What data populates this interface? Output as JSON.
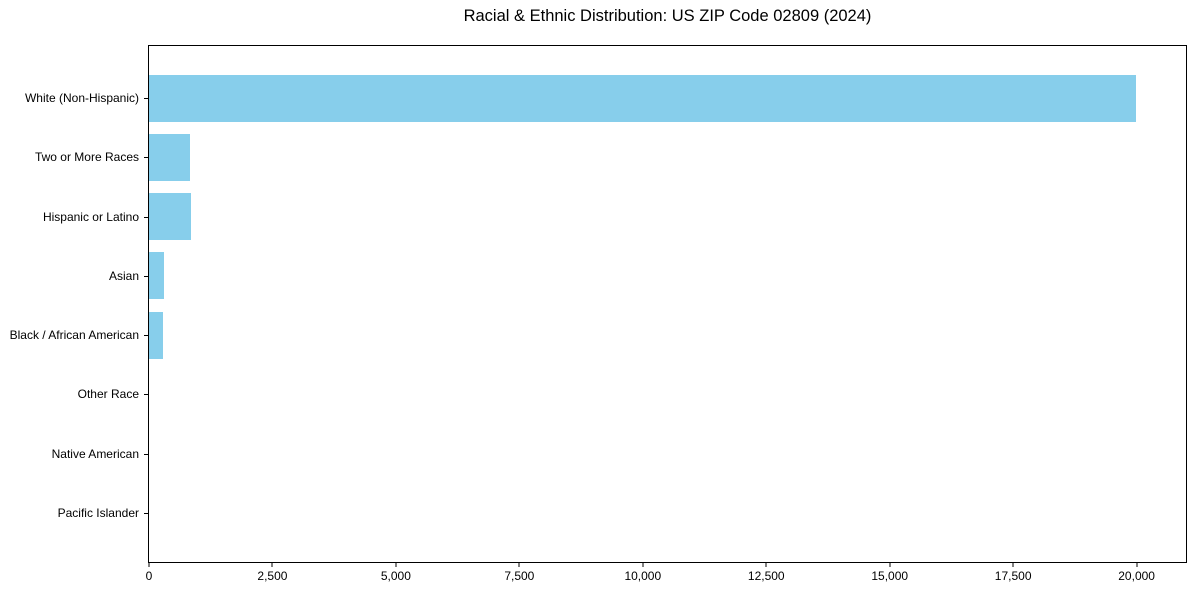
{
  "chart_data": {
    "type": "bar",
    "orientation": "horizontal",
    "title": "Racial & Ethnic Distribution: US ZIP Code 02809 (2024)",
    "categories": [
      "White (Non-Hispanic)",
      "Two or More Races",
      "Hispanic or Latino",
      "Asian",
      "Black / African American",
      "Other Race",
      "Native American",
      "Pacific Islander"
    ],
    "values": [
      19980,
      830,
      845,
      300,
      280,
      0,
      0,
      0
    ],
    "xlabel": "",
    "ylabel": "",
    "xlim": [
      0,
      21000
    ],
    "xticks": [
      0,
      2500,
      5000,
      7500,
      10000,
      12500,
      15000,
      17500,
      20000
    ],
    "xtick_labels": [
      "0",
      "2,500",
      "5,000",
      "7,500",
      "10,000",
      "12,500",
      "15,000",
      "17,500",
      "20,000"
    ],
    "bar_color": "#87CEEB",
    "text_color": "#000000",
    "grid": false,
    "legend": null
  }
}
